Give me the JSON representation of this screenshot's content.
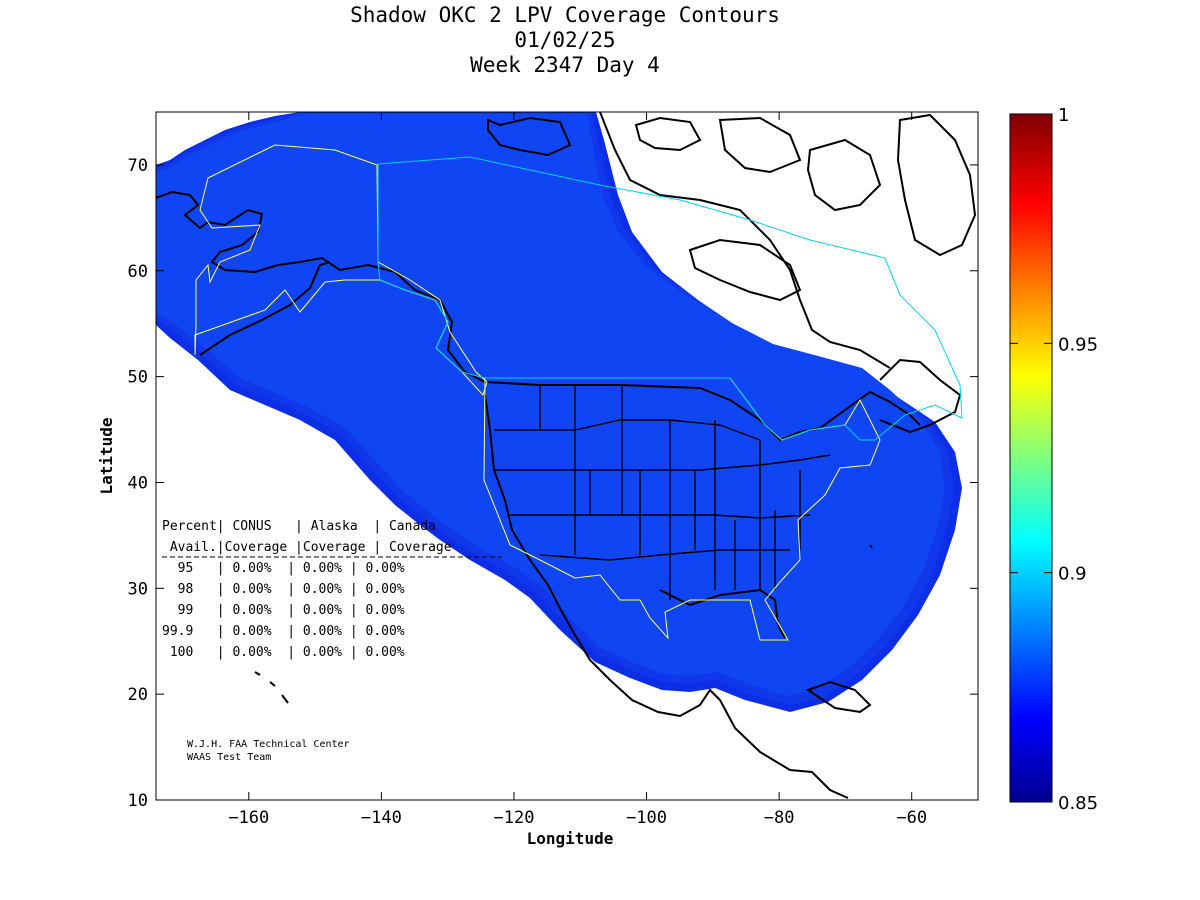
{
  "title": {
    "line1": "Shadow OKC 2 LPV Coverage Contours",
    "line2": "01/02/25",
    "line3": "Week 2347 Day 4"
  },
  "axes": {
    "xlabel": "Longitude",
    "ylabel": "Latitude",
    "xlim": [
      -174,
      -50
    ],
    "ylim": [
      10,
      75
    ],
    "xticks": [
      -160,
      -140,
      -120,
      -100,
      -80,
      -60
    ],
    "yticks": [
      10,
      20,
      30,
      40,
      50,
      60,
      70
    ]
  },
  "colorbar": {
    "range": [
      0.85,
      1
    ],
    "ticks": [
      "0.85",
      "0.9",
      "0.95",
      "1"
    ],
    "tick_values": [
      0.85,
      0.9,
      0.95,
      1.0
    ],
    "colors": [
      "#00008f",
      "#0000ff",
      "#00ffff",
      "#ffff00",
      "#ff0000",
      "#800000"
    ]
  },
  "coverage_colors": {
    "outer_band": "#0b2ee6",
    "inner_band": "#1037ea",
    "main": "#0f45f2",
    "region_outline": "#ffff66",
    "canada_outline": "#00d5e8"
  },
  "stats_table": {
    "header1": "Percent| CONUS   | Alaska  | Canada",
    "header2": " Avail.|Coverage |Coverage | Coverage",
    "rows": [
      "  95   | 0.00%  | 0.00% | 0.00%",
      "  98   | 0.00%  | 0.00% | 0.00%",
      "  99   | 0.00%  | 0.00% | 0.00%",
      "99.9   | 0.00%  | 0.00% | 0.00%",
      " 100   | 0.00%  | 0.00% | 0.00%"
    ]
  },
  "credits": {
    "line1": "W.J.H. FAA Technical Center",
    "line2": "WAAS Test Team"
  }
}
